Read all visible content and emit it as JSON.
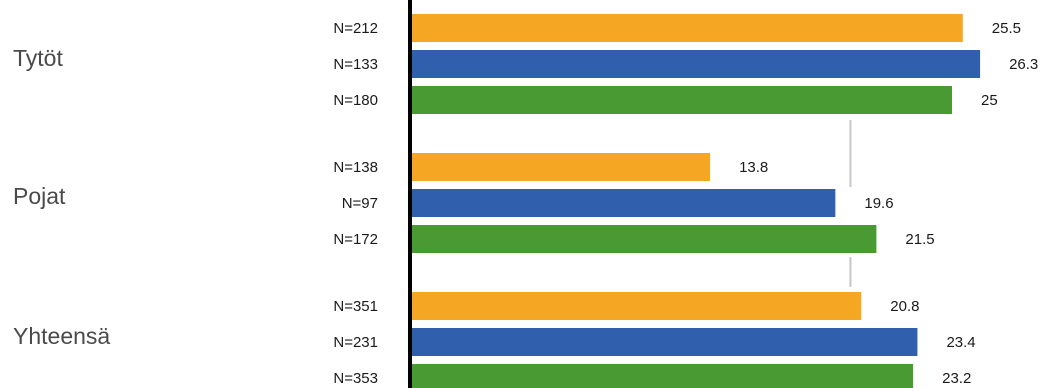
{
  "chart_data": {
    "type": "bar",
    "orientation": "horizontal",
    "grid": false,
    "legend": "none",
    "colors": [
      "#f5a623",
      "#2f5fad",
      "#4a9a34"
    ],
    "groups": [
      {
        "label": "Tytöt",
        "bars": [
          {
            "n_label": "N=212",
            "value": 25.5,
            "value_label": "25.5"
          },
          {
            "n_label": "N=133",
            "value": 26.3,
            "value_label": "26.3"
          },
          {
            "n_label": "N=180",
            "value": 25,
            "value_label": "25"
          }
        ]
      },
      {
        "label": "Pojat",
        "bars": [
          {
            "n_label": "N=138",
            "value": 13.8,
            "value_label": "13.8"
          },
          {
            "n_label": "N=97",
            "value": 19.6,
            "value_label": "19.6"
          },
          {
            "n_label": "N=172",
            "value": 21.5,
            "value_label": "21.5"
          }
        ]
      },
      {
        "label": "Yhteensä",
        "bars": [
          {
            "n_label": "N=351",
            "value": 20.8,
            "value_label": "20.8"
          },
          {
            "n_label": "N=231",
            "value": 23.4,
            "value_label": "23.4"
          },
          {
            "n_label": "N=353",
            "value": 23.2,
            "value_label": "23.2"
          }
        ]
      }
    ],
    "reference_line_value": 20.3
  }
}
